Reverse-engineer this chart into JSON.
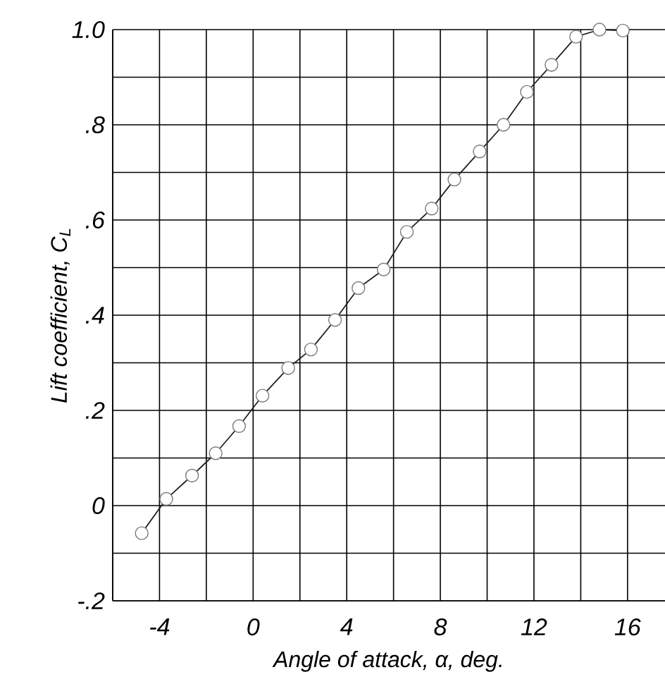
{
  "chart_data": {
    "type": "line",
    "xlabel": "Angle of attack, α, deg.",
    "ylabel": "Lift coefficient, C$_{L}$",
    "x": [
      -4.76,
      -3.71,
      -2.61,
      -1.6,
      -0.6,
      0.4,
      1.5,
      2.47,
      3.5,
      4.5,
      5.58,
      6.57,
      7.63,
      8.6,
      9.68,
      10.7,
      11.7,
      12.75,
      13.8,
      14.8,
      15.8
    ],
    "series": [
      {
        "color": "#222222",
        "values": [
          -0.058,
          0.014,
          0.063,
          0.11,
          0.167,
          0.231,
          0.289,
          0.328,
          0.39,
          0.457,
          0.496,
          0.575,
          0.624,
          0.685,
          0.744,
          0.8,
          0.869,
          0.926,
          0.985,
          1.0,
          0.998
        ]
      }
    ],
    "xlim": [
      -6,
      17.6
    ],
    "ylim": [
      -0.2,
      1.0
    ],
    "xticks": [
      {
        "value": -6,
        "label": null
      },
      -4,
      {
        "value": -2,
        "label": null
      },
      0,
      {
        "value": 2,
        "label": null
      },
      4,
      {
        "value": 6,
        "label": null
      },
      8,
      {
        "value": 10,
        "label": null
      },
      12,
      {
        "value": 14,
        "label": null
      },
      16
    ],
    "yticks": [
      {
        "value": -0.2,
        "label": "-.2"
      },
      {
        "value": -0.1,
        "label": null
      },
      0,
      {
        "value": 0.1,
        "label": null
      },
      {
        "value": 0.2,
        "label": ".2"
      },
      {
        "value": 0.3,
        "label": null
      },
      {
        "value": 0.4,
        "label": ".4"
      },
      {
        "value": 0.5,
        "label": null
      },
      {
        "value": 0.6,
        "label": ".6"
      },
      {
        "value": 0.7,
        "label": null
      },
      {
        "value": 0.8,
        "label": ".8"
      },
      {
        "value": 0.9,
        "label": null
      },
      {
        "value": 1.0,
        "label": "1.0"
      }
    ],
    "grid": true,
    "marker": "circle",
    "line_style": "solid"
  }
}
